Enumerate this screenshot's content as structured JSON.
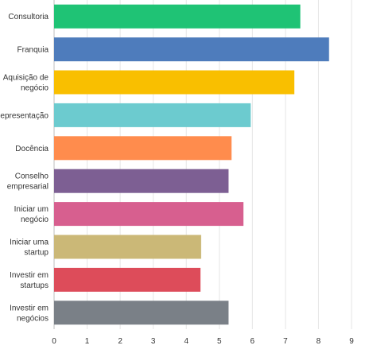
{
  "chart_data": {
    "type": "bar",
    "orientation": "horizontal",
    "categories": [
      [
        "Consultoria"
      ],
      [
        "Franquia"
      ],
      [
        "Aquisição de",
        "negócio"
      ],
      [
        "Representação"
      ],
      [
        "Docência"
      ],
      [
        "Conselho",
        "empresarial"
      ],
      [
        "Iniciar um",
        "negócio"
      ],
      [
        "Iniciar uma",
        "startup"
      ],
      [
        "Investir em",
        "startups"
      ],
      [
        "Investir em",
        "negócios"
      ]
    ],
    "values": [
      7.45,
      8.32,
      7.27,
      5.95,
      5.37,
      5.28,
      5.73,
      4.45,
      4.43,
      5.28
    ],
    "colors": [
      "#1fc375",
      "#4e7cbc",
      "#f9bf00",
      "#6ccbcf",
      "#ff8c4d",
      "#7d5f93",
      "#d75f8f",
      "#cbb877",
      "#dd4c5a",
      "#7a8087"
    ],
    "xticks": [
      "0",
      "1",
      "2",
      "3",
      "4",
      "5",
      "6",
      "7",
      "8",
      "9"
    ],
    "xlim": [
      0,
      9
    ],
    "grid": true,
    "title": "",
    "xlabel": "",
    "ylabel": ""
  }
}
